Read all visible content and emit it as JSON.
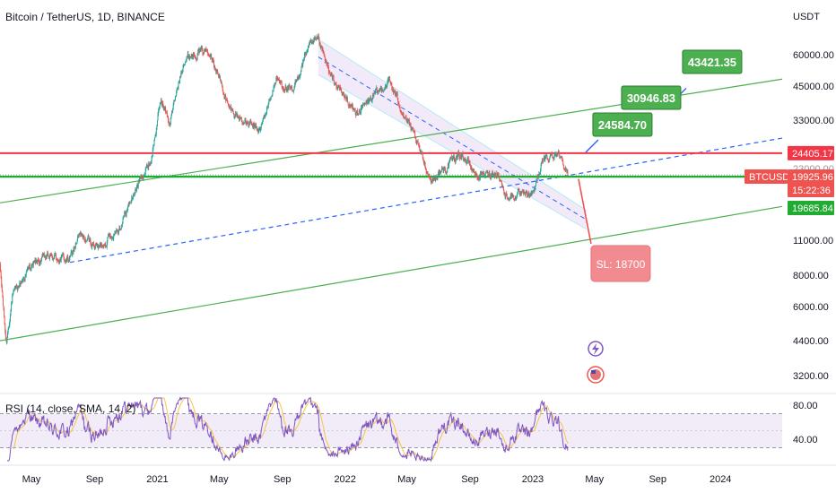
{
  "chart_title": "Bitcoin / TetherUS, 1D, BINANCE",
  "currency": "USDT",
  "colors": {
    "up": "#26a69a",
    "down": "#ef5350",
    "resistance": "#f23645",
    "support": "#22ab33",
    "trend_green": "#4caf50",
    "dashed_blue": "#2962ff",
    "channel_fill": "#ede3f5",
    "rsi_line": "#7e57c2",
    "rsi_ma": "#f7c443",
    "rsi_band": "#ede7f6"
  },
  "price_axis": {
    "ticks": [
      "60000.00",
      "45000.00",
      "33000.00",
      "11000.00",
      "8000.00",
      "6000.00",
      "4400.00",
      "3200.00"
    ],
    "tags": [
      {
        "label": "24405.17",
        "kind": "resistance"
      },
      {
        "label": "BTCUSDT",
        "kind": "symbol"
      },
      {
        "label": "19925.96",
        "kind": "last"
      },
      {
        "label": "15:22:36",
        "kind": "countdown"
      },
      {
        "label": "19685.84",
        "kind": "support"
      }
    ],
    "hidden_tick": "23000.00"
  },
  "rsi": {
    "title": "RSI (14, close, SMA, 14, 2)",
    "ticks": [
      "80.00",
      "40.00"
    ]
  },
  "time_axis": [
    "May",
    "Sep",
    "2021",
    "May",
    "Sep",
    "2022",
    "May",
    "Sep",
    "2023",
    "May",
    "Sep",
    "2024"
  ],
  "targets": [
    "24584.70",
    "30946.83",
    "43421.35"
  ],
  "stop_loss": "SL: 18700",
  "chart_data": {
    "type": "candlestick",
    "title": "Bitcoin / TetherUS, 1D, BINANCE",
    "yscale": "log",
    "ylim": [
      2700,
      90000
    ],
    "xlim": [
      "2020-03-01",
      "2024-04-30"
    ],
    "price_path": [
      [
        "2020-03-01",
        8600
      ],
      [
        "2020-03-13",
        4300
      ],
      [
        "2020-03-25",
        6600
      ],
      [
        "2020-04-30",
        8700
      ],
      [
        "2020-06-01",
        9500
      ],
      [
        "2020-07-15",
        9200
      ],
      [
        "2020-08-01",
        11500
      ],
      [
        "2020-09-10",
        10300
      ],
      [
        "2020-10-20",
        12500
      ],
      [
        "2020-11-25",
        18500
      ],
      [
        "2020-12-20",
        23000
      ],
      [
        "2021-01-08",
        40000
      ],
      [
        "2021-01-25",
        32000
      ],
      [
        "2021-02-21",
        57000
      ],
      [
        "2021-03-13",
        61000
      ],
      [
        "2021-04-14",
        63000
      ],
      [
        "2021-05-19",
        37000
      ],
      [
        "2021-06-22",
        32000
      ],
      [
        "2021-07-20",
        30000
      ],
      [
        "2021-08-20",
        48000
      ],
      [
        "2021-09-21",
        42000
      ],
      [
        "2021-10-20",
        64000
      ],
      [
        "2021-11-10",
        68000
      ],
      [
        "2021-12-04",
        49000
      ],
      [
        "2022-01-22",
        35000
      ],
      [
        "2022-03-28",
        47000
      ],
      [
        "2022-05-10",
        30000
      ],
      [
        "2022-06-18",
        19000
      ],
      [
        "2022-08-14",
        24400
      ],
      [
        "2022-09-15",
        19800
      ],
      [
        "2022-10-25",
        20500
      ],
      [
        "2022-11-09",
        16500
      ],
      [
        "2022-12-30",
        16600
      ],
      [
        "2023-01-20",
        22500
      ],
      [
        "2023-02-16",
        24700
      ],
      [
        "2023-02-28",
        23400
      ],
      [
        "2023-03-10",
        19925.96
      ]
    ],
    "horizontal_levels": [
      {
        "value": 24405.17,
        "style": "resistance"
      },
      {
        "value": 19685.84,
        "style": "support"
      }
    ],
    "trend_lines": [
      {
        "style": "green",
        "from": [
          "2020-03-01",
          15500
        ],
        "to": [
          "2024-04-30",
          48000
        ]
      },
      {
        "style": "green",
        "from": [
          "2020-03-01",
          4400
        ],
        "to": [
          "2024-04-30",
          15000
        ]
      },
      {
        "style": "dashed-blue",
        "from": [
          "2020-07-15",
          9000
        ],
        "to": [
          "2024-04-30",
          28000
        ]
      }
    ],
    "channel": {
      "upper": [
        [
          "2021-11-10",
          69000
        ],
        [
          "2023-04-15",
          14500
        ]
      ],
      "lower": [
        [
          "2021-11-10",
          50000
        ],
        [
          "2023-04-15",
          12200
        ]
      ]
    },
    "targets": [
      24584.7,
      30946.83,
      43421.35
    ],
    "stop_loss": 18700,
    "last_price": 19925.96,
    "rsi": {
      "ylim": [
        20,
        100
      ],
      "bands": [
        30,
        70
      ],
      "levels_labeled": [
        80,
        40
      ]
    }
  }
}
